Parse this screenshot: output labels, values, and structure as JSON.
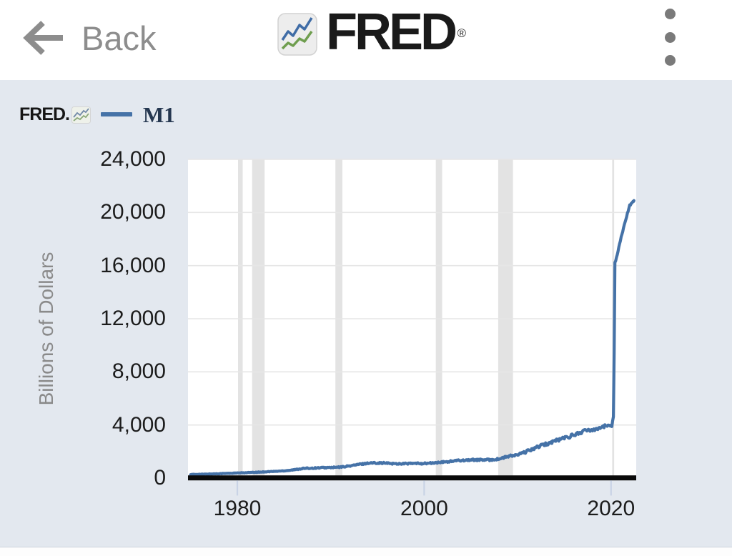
{
  "topbar": {
    "back_label": "Back",
    "brand": "FRED",
    "registered_mark": "®"
  },
  "chart": {
    "watermark": "FRED.",
    "legend_label": "M1"
  },
  "chart_data": {
    "type": "line",
    "title": "",
    "xlabel": "",
    "ylabel": "Billions of Dollars",
    "legend": [
      "M1"
    ],
    "legend_position": "top-left",
    "grid": "horizontal",
    "xlim": [
      1974.7,
      2022.7
    ],
    "ylim": [
      0,
      24000
    ],
    "xticks": [
      1980,
      2000,
      2020
    ],
    "xtick_labels": [
      "1980",
      "2000",
      "2020"
    ],
    "yticks": [
      0,
      4000,
      8000,
      12000,
      16000,
      20000,
      24000
    ],
    "ytick_labels": [
      "0",
      "4,000",
      "8,000",
      "12,000",
      "16,000",
      "20,000",
      "24,000"
    ],
    "recession_bands": [
      [
        1980.08,
        1980.58
      ],
      [
        1981.58,
        1982.92
      ],
      [
        1990.5,
        1991.25
      ],
      [
        2001.25,
        2001.92
      ],
      [
        2007.92,
        2009.5
      ],
      [
        2020.12,
        2020.33
      ]
    ],
    "series": [
      {
        "name": "M1",
        "color": "#4572a7",
        "units": "Billions of Dollars",
        "anchors": [
          [
            1975,
            273
          ],
          [
            1976,
            288
          ],
          [
            1977,
            307
          ],
          [
            1978,
            332
          ],
          [
            1979,
            358
          ],
          [
            1980,
            382
          ],
          [
            1981,
            409
          ],
          [
            1982,
            437
          ],
          [
            1983,
            475
          ],
          [
            1984,
            505
          ],
          [
            1985,
            551
          ],
          [
            1986,
            620
          ],
          [
            1987,
            725
          ],
          [
            1988,
            751
          ],
          [
            1989,
            783
          ],
          [
            1990,
            794
          ],
          [
            1991,
            825
          ],
          [
            1992,
            912
          ],
          [
            1993,
            1031
          ],
          [
            1994,
            1130
          ],
          [
            1995,
            1150
          ],
          [
            1996,
            1122
          ],
          [
            1997,
            1081
          ],
          [
            1998,
            1092
          ],
          [
            1999,
            1102
          ],
          [
            2000,
            1104
          ],
          [
            2001,
            1136
          ],
          [
            2002,
            1196
          ],
          [
            2003,
            1274
          ],
          [
            2004,
            1344
          ],
          [
            2005,
            1372
          ],
          [
            2006,
            1374
          ],
          [
            2007,
            1372
          ],
          [
            2008,
            1435
          ],
          [
            2009,
            1637
          ],
          [
            2010,
            1742
          ],
          [
            2011,
            2010
          ],
          [
            2012,
            2311
          ],
          [
            2013,
            2545
          ],
          [
            2014,
            2810
          ],
          [
            2015,
            3027
          ],
          [
            2016,
            3247
          ],
          [
            2017,
            3519
          ],
          [
            2018,
            3658
          ],
          [
            2019,
            3848
          ],
          [
            2020.1,
            4018
          ],
          [
            2020.3,
            4790
          ],
          [
            2020.38,
            16170
          ],
          [
            2020.6,
            16610
          ],
          [
            2021.0,
            17900
          ],
          [
            2021.5,
            19300
          ],
          [
            2022.0,
            20550
          ],
          [
            2022.25,
            20700
          ],
          [
            2022.45,
            20900
          ]
        ],
        "noise": {
          "frac": 0.05,
          "max": 140,
          "post_jump": 55,
          "jump_year": 2020.25
        }
      }
    ]
  }
}
